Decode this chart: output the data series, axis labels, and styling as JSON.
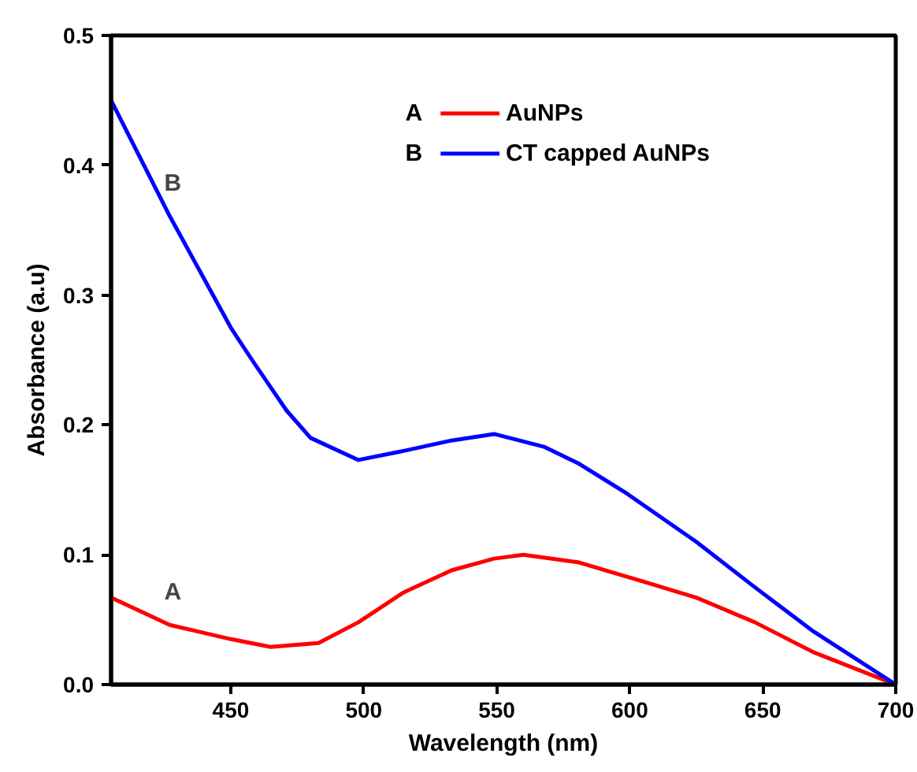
{
  "chart_data": {
    "type": "line",
    "xlabel": "Wavelength (nm)",
    "ylabel": "Absorbance (a.u)",
    "xlim": [
      405,
      700
    ],
    "xticks": [
      450,
      500,
      550,
      600,
      650,
      700
    ],
    "ylim": [
      0,
      0.5
    ],
    "yticks": [
      {
        "value": 0,
        "label": "0.0"
      },
      0.1,
      0.2,
      0.3,
      0.4,
      0.5
    ],
    "legend": "top right",
    "grid": false,
    "line_style": "solid",
    "marker": "none",
    "series": [
      {
        "name": "AuNPs",
        "color": "#ff0000",
        "x": [
          405,
          427,
          450,
          465,
          483,
          498,
          515,
          533,
          549,
          560,
          581,
          604,
          625,
          647,
          669,
          700
        ],
        "values": [
          0.067,
          0.046,
          0.035,
          0.029,
          0.032,
          0.048,
          0.071,
          0.088,
          0.097,
          0.1,
          0.094,
          0.08,
          0.067,
          0.048,
          0.025,
          0
        ]
      },
      {
        "name": "CT capped AuNPs",
        "color": "#0000ff",
        "x": [
          405,
          427,
          450,
          458,
          471,
          480,
          498,
          515,
          533,
          549,
          568,
          581,
          599,
          625,
          647,
          669,
          700
        ],
        "values": [
          0.45,
          0.361,
          0.275,
          0.25,
          0.211,
          0.19,
          0.173,
          0.18,
          0.188,
          0.193,
          0.183,
          0.17,
          0.147,
          0.11,
          0.075,
          0.041,
          0
        ]
      }
    ],
    "annotations": [
      "A",
      "B"
    ]
  }
}
